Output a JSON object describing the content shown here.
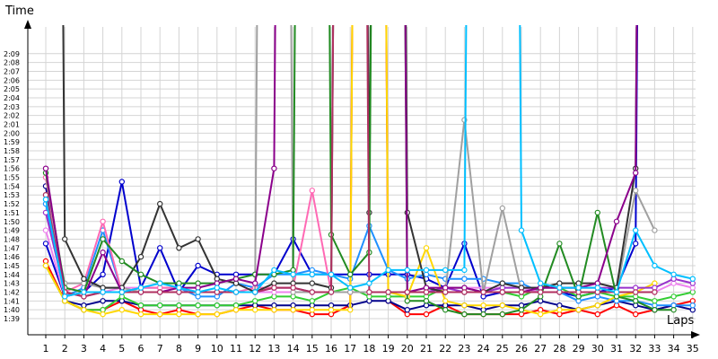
{
  "chart_data": {
    "type": "line",
    "title": "",
    "ylabel": "Time",
    "xlabel": "Laps",
    "grid": true,
    "y_unit": "minutes:seconds (lap time)",
    "ylim_seconds": [
      98,
      131
    ],
    "y_ticks": [
      "1:39",
      "1:40",
      "1:41",
      "1:42",
      "1:43",
      "1:44",
      "1:45",
      "1:46",
      "1:47",
      "1:48",
      "1:49",
      "1:50",
      "1:51",
      "1:52",
      "1:53",
      "1:54",
      "1:55",
      "1:56",
      "1:57",
      "1:58",
      "1:59",
      "2:00",
      "2:01",
      "2:02",
      "2:03",
      "2:04",
      "2:05",
      "2:06",
      "2:07",
      "2:08",
      "2:09"
    ],
    "x_ticks": [
      "1",
      "2",
      "3",
      "4",
      "5",
      "6",
      "7",
      "8",
      "9",
      "10",
      "11",
      "12",
      "13",
      "14",
      "15",
      "16",
      "17",
      "18",
      "19",
      "20",
      "21",
      "22",
      "23",
      "24",
      "25",
      "26",
      "27",
      "28",
      "29",
      "30",
      "31",
      "32",
      "33",
      "34",
      "35"
    ],
    "series": [
      {
        "color": "#ff0000",
        "values": [
          105.5,
          101,
          100,
          100,
          101,
          100,
          99.5,
          100,
          99.5,
          99.5,
          100,
          100.5,
          100,
          100,
          99.5,
          99.5,
          100.5,
          400,
          101,
          99.5,
          99.5,
          100.5,
          99.5,
          99.5,
          99.5,
          99.5,
          100,
          99.5,
          100,
          99.5,
          100.5,
          99.5,
          100,
          100.5,
          101
        ]
      },
      {
        "color": "#00008b",
        "values": [
          114,
          101,
          100.5,
          101,
          101,
          100.5,
          100.5,
          100.5,
          100.5,
          100.5,
          100.5,
          100.5,
          100.5,
          100.5,
          100.5,
          100.5,
          100.5,
          101,
          101,
          100,
          100.5,
          100.5,
          100.5,
          100,
          100.5,
          100.5,
          101,
          100.5,
          100,
          100.5,
          101,
          100.5,
          100,
          100.5,
          100
        ]
      },
      {
        "color": "#0000cd",
        "values": [
          107.5,
          101.5,
          102,
          104,
          114.5,
          102.5,
          107,
          102,
          105,
          104,
          104,
          104,
          104,
          108,
          104,
          104,
          104,
          104,
          104,
          104,
          103.5,
          102.5,
          107.5,
          101.5,
          102,
          102,
          102,
          102,
          101.5,
          102,
          102.5,
          107.5,
          400,
          null,
          null
        ]
      },
      {
        "color": "#1e90ff",
        "values": [
          112,
          101.5,
          102.5,
          109,
          102,
          102.5,
          102.5,
          102.5,
          101.5,
          101.5,
          103,
          102.5,
          104,
          104,
          104.5,
          104,
          103.5,
          109.5,
          104.5,
          103.5,
          104,
          103.5,
          103.5,
          103.5,
          103,
          103,
          102,
          102,
          101,
          101.5,
          101,
          101,
          100.5,
          100.5,
          100.5
        ]
      },
      {
        "color": "#32cd32",
        "values": [
          105,
          101,
          100,
          100,
          101.5,
          100.5,
          100.5,
          100.5,
          100.5,
          100.5,
          100.5,
          101,
          101.5,
          101.5,
          101,
          102,
          102.5,
          101.5,
          101.5,
          101.5,
          101.5,
          102.5,
          102.5,
          102,
          102,
          101.5,
          102.5,
          102.5,
          101.5,
          102,
          101.5,
          101.5,
          101,
          101.5,
          102
        ]
      },
      {
        "color": "#ffd700",
        "values": [
          105,
          101,
          100,
          99.5,
          100,
          99.5,
          99.5,
          99.5,
          99.5,
          99.5,
          100,
          100,
          100,
          100,
          100,
          100,
          100,
          400,
          102,
          101.5,
          107,
          101,
          100.5,
          100.5,
          100.5,
          100,
          99.5,
          100,
          100,
          100.5,
          101.5,
          102,
          103,
          null,
          null
        ]
      },
      {
        "color": "#ee82ee",
        "values": [
          109,
          101.5,
          102,
          102,
          102.5,
          102.5,
          102.5,
          102.5,
          102,
          102,
          102,
          102,
          102,
          102,
          102,
          102,
          102,
          102,
          102,
          102,
          102,
          102.5,
          102.5,
          102.5,
          102.5,
          102.5,
          102,
          102,
          102,
          102,
          102,
          102,
          102,
          103,
          102.5
        ]
      },
      {
        "color": "#9932cc",
        "values": [
          111,
          102,
          101.5,
          102,
          102,
          102,
          102,
          102,
          102,
          102,
          102,
          102,
          102.5,
          102.5,
          102,
          102,
          102,
          102,
          102,
          102,
          102,
          102.5,
          102,
          102,
          102.5,
          102.5,
          102.5,
          102.5,
          102.5,
          102.5,
          102.5,
          102.5,
          102.5,
          103.5,
          103
        ]
      },
      {
        "color": "#ff69b4",
        "values": [
          115,
          102,
          103,
          110,
          102,
          102.5,
          102.5,
          102.5,
          102,
          102,
          102,
          102.5,
          102.5,
          102.5,
          113.5,
          102,
          102,
          102,
          102,
          102,
          102,
          102,
          102,
          102,
          102,
          102,
          102,
          102,
          102,
          102,
          102,
          102,
          102,
          null,
          null
        ]
      },
      {
        "color": "#a0a0a0",
        "values": [
          113,
          103,
          103,
          102.5,
          102.5,
          102,
          102,
          102,
          102,
          102,
          102,
          102,
          400,
          102,
          102,
          102,
          102,
          102,
          102,
          102,
          102,
          102,
          121.5,
          102,
          111.5,
          102,
          102,
          102,
          102,
          102,
          102,
          113.5,
          109,
          null,
          null
        ]
      },
      {
        "color": "#333333",
        "values": [
          400,
          108,
          103.5,
          102.5,
          102.5,
          106,
          112,
          107,
          108,
          103.5,
          103,
          102,
          103,
          103,
          103,
          102.5,
          400,
          111,
          400,
          111,
          102.5,
          102,
          102,
          102,
          103,
          102.5,
          102.5,
          103,
          103,
          103,
          102.5,
          116,
          400,
          null,
          null
        ]
      },
      {
        "color": "#228b22",
        "values": [
          115.5,
          102.5,
          102,
          108,
          105.5,
          104,
          103,
          103,
          103,
          103,
          103.5,
          104,
          104,
          104.5,
          400,
          108.5,
          104,
          106.5,
          400,
          101,
          101,
          100,
          99.5,
          99.5,
          99.5,
          100,
          101.5,
          107.5,
          101.5,
          111,
          101.5,
          101,
          100,
          100,
          null
        ]
      },
      {
        "color": "#8b008b",
        "values": [
          116,
          102,
          101.5,
          106.5,
          102,
          102,
          102,
          102.5,
          102.5,
          103,
          103.5,
          103,
          116,
          400,
          400,
          400,
          400,
          400,
          400,
          102,
          102.5,
          102.5,
          102.5,
          102,
          102,
          102,
          102.5,
          102.5,
          102.5,
          103,
          110,
          115.5,
          400,
          null,
          null
        ]
      },
      {
        "color": "#b03060",
        "values": [
          113,
          102,
          101.5,
          102,
          102,
          102,
          102,
          102,
          102,
          102,
          102,
          102,
          102.5,
          102.5,
          102,
          102,
          400,
          102,
          102,
          102,
          102,
          102,
          102,
          102,
          102,
          102,
          102,
          102,
          102,
          102,
          102,
          102,
          102,
          null,
          null
        ]
      },
      {
        "color": "#00bfff",
        "values": [
          112.5,
          101.5,
          102,
          102,
          102,
          102.5,
          103,
          102.5,
          102,
          102.5,
          102,
          102,
          104.5,
          104,
          104,
          104,
          102.5,
          103,
          104.5,
          104.5,
          104.5,
          104.5,
          104.5,
          400,
          400,
          109,
          103,
          102.5,
          102.5,
          102.5,
          102,
          109,
          105,
          104,
          103.5
        ]
      }
    ]
  }
}
